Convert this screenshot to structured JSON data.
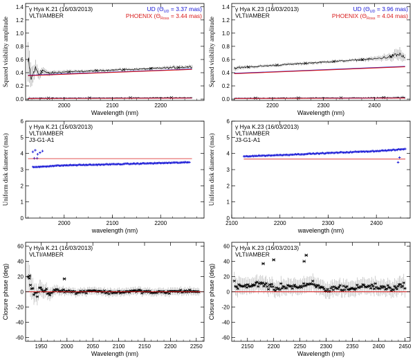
{
  "chart_data": [
    {
      "type": "line",
      "panel": "vis-k21",
      "annotations": [
        "γ Hya K.21 (16/03/2013)",
        "VLTI/AMBER"
      ],
      "legend": [
        "UD (Θ_UD = 3.37 mas)",
        "PHOENIX (Θ_Ross = 3.44 mas)"
      ],
      "legend_placement": "top-right",
      "xlabel": "Wavelength (nm)",
      "ylabel": "Squared visibility amplitude",
      "xlim": [
        1920,
        2290
      ],
      "ylim": [
        -0.02,
        1.45
      ],
      "xticks": [
        2000,
        2100,
        2200
      ],
      "yticks": [
        0.0,
        0.2,
        0.4,
        0.6,
        0.8,
        1.0,
        1.2,
        1.4
      ],
      "colors": {
        "data": "#000000",
        "ud": "#1515d6",
        "phoenix": "#d81a1a"
      },
      "series": [
        {
          "name": "",
          "role": "data-high",
          "x": [
            1925,
            1932,
            1940,
            1948,
            1956,
            1965,
            1980,
            2000,
            2040,
            2080,
            2120,
            2160,
            2200,
            2240,
            2265
          ],
          "y": [
            0.55,
            0.3,
            0.47,
            0.37,
            0.44,
            0.39,
            0.4,
            0.41,
            0.42,
            0.435,
            0.445,
            0.455,
            0.47,
            0.48,
            0.49
          ],
          "err": [
            0.3,
            0.15,
            0.1,
            0.07,
            0.05,
            0.04,
            0.03,
            0.03,
            0.02,
            0.02,
            0.02,
            0.02,
            0.02,
            0.03,
            0.03
          ]
        },
        {
          "name": "",
          "role": "data-low",
          "x": [
            1925,
            2000,
            2100,
            2200,
            2265
          ],
          "y": [
            0.012,
            0.015,
            0.018,
            0.02,
            0.022
          ],
          "err": [
            0.02,
            0.01,
            0.01,
            0.01,
            0.01
          ]
        },
        {
          "name": "UD (Θ_UD = 3.37 mas)",
          "role": "ud-high",
          "x": [
            1925,
            2265
          ],
          "y": [
            0.36,
            0.455
          ]
        },
        {
          "name": "PHOENIX (Θ_Ross = 3.44 mas)",
          "role": "phoenix-high",
          "x": [
            1925,
            2265
          ],
          "y": [
            0.355,
            0.45
          ]
        },
        {
          "name": "UD (Θ_UD = 3.37 mas)",
          "role": "ud-low",
          "x": [
            1925,
            2265
          ],
          "y": [
            0.01,
            0.016
          ]
        },
        {
          "name": "PHOENIX (Θ_Ross = 3.44 mas)",
          "role": "phoenix-low",
          "x": [
            1925,
            2265
          ],
          "y": [
            0.008,
            0.014
          ]
        }
      ]
    },
    {
      "type": "line",
      "panel": "vis-k23",
      "annotations": [
        "γ Hya K.23 (16/03/2013)",
        "VLTI/AMBER"
      ],
      "legend": [
        "UD (Θ_UD = 3.96 mas)",
        "PHOENIX (Θ_Ross = 4.04 mas)"
      ],
      "legend_placement": "top-right",
      "xlabel": "Wavelength (nm)",
      "ylabel": "Squared visibility amplitude",
      "xlim": [
        2120,
        2470
      ],
      "ylim": [
        -0.02,
        1.45
      ],
      "xticks": [
        2200,
        2300,
        2400
      ],
      "yticks": [
        0.0,
        0.2,
        0.4,
        0.6,
        0.8,
        1.0,
        1.2,
        1.4
      ],
      "colors": {
        "data": "#000000",
        "ud": "#1515d6",
        "phoenix": "#d81a1a"
      },
      "series": [
        {
          "name": "",
          "role": "data-high",
          "x": [
            2125,
            2160,
            2200,
            2240,
            2280,
            2320,
            2360,
            2400,
            2430,
            2450,
            2460
          ],
          "y": [
            0.47,
            0.49,
            0.51,
            0.53,
            0.55,
            0.57,
            0.59,
            0.61,
            0.64,
            0.68,
            0.62
          ],
          "err": [
            0.03,
            0.02,
            0.02,
            0.02,
            0.02,
            0.02,
            0.02,
            0.03,
            0.05,
            0.09,
            0.05
          ]
        },
        {
          "name": "",
          "role": "data-low",
          "x": [
            2125,
            2200,
            2300,
            2400,
            2460
          ],
          "y": [
            0.012,
            0.015,
            0.018,
            0.02,
            0.025
          ],
          "err": [
            0.01,
            0.01,
            0.01,
            0.01,
            0.02
          ]
        },
        {
          "name": "UD (Θ_UD = 3.96 mas)",
          "role": "ud-high",
          "x": [
            2125,
            2460
          ],
          "y": [
            0.39,
            0.495
          ]
        },
        {
          "name": "PHOENIX (Θ_Ross = 4.04 mas)",
          "role": "phoenix-high",
          "x": [
            2125,
            2460
          ],
          "y": [
            0.385,
            0.49
          ]
        },
        {
          "name": "UD (Θ_UD = 3.96 mas)",
          "role": "ud-low",
          "x": [
            2125,
            2460
          ],
          "y": [
            0.01,
            0.017
          ]
        },
        {
          "name": "PHOENIX (Θ_Ross = 4.04 mas)",
          "role": "phoenix-low",
          "x": [
            2125,
            2460
          ],
          "y": [
            0.008,
            0.015
          ]
        }
      ]
    },
    {
      "type": "scatter",
      "panel": "ud-k21",
      "annotations": [
        "γ Hya K.21 (16/03/2013)",
        "VLTI/AMBER",
        "J3-G1-A1"
      ],
      "xlabel": "wavelength (nm)",
      "ylabel": "Uniform disk diameter (mas)",
      "xlim": [
        1920,
        2290
      ],
      "ylim": [
        0,
        6
      ],
      "xticks": [
        2000,
        2100,
        2200
      ],
      "yticks": [
        0,
        1,
        2,
        3,
        4,
        5,
        6
      ],
      "colors": {
        "data": "#1a1ad6",
        "phoenix": "#d81a1a"
      },
      "series": [
        {
          "name": "",
          "role": "data",
          "x": [
            1935,
            1960,
            1990,
            2020,
            2060,
            2100,
            2140,
            2180,
            2220,
            2260
          ],
          "y": [
            3.15,
            3.2,
            3.25,
            3.28,
            3.3,
            3.33,
            3.36,
            3.39,
            3.42,
            3.45
          ]
        },
        {
          "name": "",
          "role": "data-outliers",
          "x": [
            1935,
            1940,
            1945,
            1950,
            1955,
            1938,
            1944
          ],
          "y": [
            4.1,
            4.2,
            3.95,
            4.05,
            4.15,
            3.7,
            3.7
          ]
        },
        {
          "name": "",
          "role": "phoenix",
          "x": [
            1925,
            2265
          ],
          "y": [
            3.68,
            3.68
          ]
        }
      ]
    },
    {
      "type": "scatter",
      "panel": "ud-k23",
      "annotations": [
        "γ Hya K.23 (16/03/2013)",
        "VLTI/AMBER",
        "J3-G1-A1"
      ],
      "xlabel": "wavelength (nm)",
      "ylabel": "Uniform disk diameter (mas)",
      "xlim": [
        2100,
        2470
      ],
      "ylim": [
        0,
        6
      ],
      "xticks": [
        2100,
        2200,
        2300,
        2400
      ],
      "yticks": [
        0,
        1,
        2,
        3,
        4,
        5,
        6
      ],
      "colors": {
        "data": "#1a1ad6",
        "phoenix": "#d81a1a"
      },
      "series": [
        {
          "name": "",
          "role": "data",
          "x": [
            2125,
            2160,
            2200,
            2240,
            2280,
            2320,
            2360,
            2400,
            2440,
            2460
          ],
          "y": [
            3.82,
            3.86,
            3.9,
            3.95,
            4.0,
            4.05,
            4.1,
            4.15,
            4.22,
            4.28
          ]
        },
        {
          "name": "",
          "role": "data-outliers",
          "x": [
            2445,
            2448
          ],
          "y": [
            3.45,
            3.75
          ]
        },
        {
          "name": "",
          "role": "phoenix",
          "x": [
            2125,
            2460
          ],
          "y": [
            3.65,
            3.65
          ]
        }
      ]
    },
    {
      "type": "scatter",
      "panel": "cp-k21",
      "annotations": [
        "γ Hya K.21 (16/03/2013)",
        "VLTI/AMBER"
      ],
      "xlabel": "Wavelength (nm)",
      "ylabel": "Closure phase (deg)",
      "xlim": [
        1920,
        2265
      ],
      "ylim": [
        -65,
        65
      ],
      "xticks": [
        1950,
        2000,
        2050,
        2100,
        2150,
        2200,
        2250
      ],
      "yticks": [
        -60,
        -40,
        -20,
        0,
        20,
        40,
        60
      ],
      "colors": {
        "data": "#000000",
        "zero": "#d81a1a"
      },
      "series": [
        {
          "name": "",
          "role": "data",
          "x": [
            1925,
            1930,
            1940,
            1950,
            1965,
            1980,
            2000,
            2020,
            2050,
            2080,
            2110,
            2140,
            2170,
            2200,
            2230,
            2255
          ],
          "y": [
            22,
            8,
            -5,
            5,
            -2,
            3,
            1,
            -1,
            2,
            -1,
            0,
            1,
            -1,
            0,
            1,
            0
          ],
          "err": [
            20,
            15,
            12,
            10,
            8,
            6,
            5,
            5,
            5,
            5,
            5,
            5,
            5,
            5,
            5,
            5
          ]
        },
        {
          "name": "",
          "role": "data-outliers",
          "x": [
            1995,
            1928
          ],
          "y": [
            17,
            21
          ]
        },
        {
          "name": "",
          "role": "zero",
          "x": [
            1920,
            2265
          ],
          "y": [
            0,
            0
          ]
        }
      ]
    },
    {
      "type": "scatter",
      "panel": "cp-k23",
      "annotations": [
        "γ Hya K.23 (16/03/2013)",
        "VLTI/AMBER"
      ],
      "xlabel": "Wavelength (nm)",
      "ylabel": "Closure phase (deg)",
      "xlim": [
        2120,
        2460
      ],
      "ylim": [
        -65,
        65
      ],
      "xticks": [
        2150,
        2200,
        2250,
        2300,
        2350,
        2400,
        2450
      ],
      "yticks": [
        -60,
        -40,
        -20,
        0,
        20,
        40,
        60
      ],
      "colors": {
        "data": "#000000",
        "zero": "#d81a1a"
      },
      "series": [
        {
          "name": "",
          "role": "data",
          "x": [
            2125,
            2150,
            2175,
            2200,
            2225,
            2250,
            2275,
            2300,
            2325,
            2350,
            2375,
            2400,
            2425,
            2450
          ],
          "y": [
            10,
            6,
            12,
            4,
            8,
            6,
            10,
            2,
            6,
            4,
            8,
            6,
            5,
            8
          ],
          "err": [
            12,
            10,
            10,
            10,
            10,
            10,
            10,
            10,
            10,
            10,
            10,
            10,
            10,
            12
          ]
        },
        {
          "name": "",
          "role": "data-outliers",
          "x": [
            2180,
            2200,
            2258,
            2262
          ],
          "y": [
            37,
            42,
            40,
            48
          ]
        },
        {
          "name": "",
          "role": "zero",
          "x": [
            2120,
            2460
          ],
          "y": [
            0,
            0
          ]
        }
      ]
    }
  ]
}
